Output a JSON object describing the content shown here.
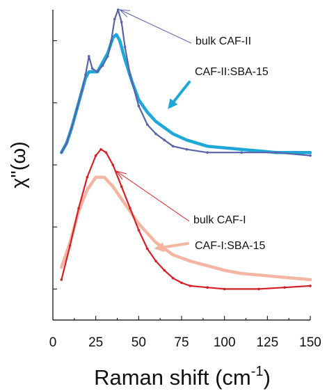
{
  "chart_data": {
    "type": "line",
    "xlabel": "Raman shift (cm",
    "xlabel_sup": "-1",
    "xlabel_close": ")",
    "ylabel": "χ\"(ω)",
    "xlim": [
      0,
      150
    ],
    "ylim": [
      0,
      10
    ],
    "x_ticks": [
      0,
      25,
      50,
      75,
      100,
      125,
      150
    ],
    "x_tick_labels": [
      "0",
      "25",
      "50",
      "75",
      "100",
      "125",
      "150"
    ],
    "y_ticks": [
      1,
      3,
      5,
      7,
      9
    ],
    "y_tick_labels_shown": false,
    "grid": false,
    "legend": "none",
    "series": [
      {
        "name": "bulk CAF-II",
        "color": "#5a62a8",
        "style": "dotted-line",
        "points": [
          [
            5,
            5.4
          ],
          [
            8,
            5.7
          ],
          [
            11,
            6.2
          ],
          [
            14,
            6.8
          ],
          [
            17,
            7.4
          ],
          [
            19,
            7.9
          ],
          [
            21,
            8.5
          ],
          [
            23,
            8.1
          ],
          [
            26,
            8.0
          ],
          [
            29,
            8.2
          ],
          [
            32,
            8.5
          ],
          [
            34,
            9.0
          ],
          [
            36,
            9.7
          ],
          [
            38,
            10.0
          ],
          [
            40,
            9.6
          ],
          [
            42,
            8.8
          ],
          [
            45,
            7.9
          ],
          [
            50,
            6.9
          ],
          [
            55,
            6.3
          ],
          [
            60,
            6.0
          ],
          [
            65,
            5.8
          ],
          [
            70,
            5.6
          ],
          [
            78,
            5.5
          ],
          [
            90,
            5.4
          ],
          [
            110,
            5.4
          ],
          [
            130,
            5.4
          ],
          [
            150,
            5.3
          ]
        ]
      },
      {
        "name": "CAF-II:SBA-15",
        "color": "#1ea8d8",
        "style": "thick-line",
        "points": [
          [
            5,
            5.4
          ],
          [
            8,
            5.7
          ],
          [
            11,
            6.2
          ],
          [
            14,
            6.8
          ],
          [
            17,
            7.4
          ],
          [
            19,
            7.8
          ],
          [
            21,
            8.0
          ],
          [
            23,
            8.0
          ],
          [
            26,
            8.0
          ],
          [
            29,
            8.3
          ],
          [
            32,
            8.6
          ],
          [
            35,
            9.1
          ],
          [
            37,
            9.2
          ],
          [
            39,
            9.0
          ],
          [
            42,
            8.4
          ],
          [
            46,
            7.7
          ],
          [
            50,
            7.1
          ],
          [
            55,
            6.7
          ],
          [
            60,
            6.4
          ],
          [
            65,
            6.2
          ],
          [
            70,
            6.0
          ],
          [
            78,
            5.8
          ],
          [
            90,
            5.6
          ],
          [
            110,
            5.5
          ],
          [
            130,
            5.4
          ],
          [
            150,
            5.4
          ]
        ]
      },
      {
        "name": "bulk CAF-I",
        "color": "#d42027",
        "style": "dotted-line",
        "points": [
          [
            5,
            1.3
          ],
          [
            10,
            2.4
          ],
          [
            15,
            3.6
          ],
          [
            20,
            4.6
          ],
          [
            25,
            5.3
          ],
          [
            28,
            5.5
          ],
          [
            31,
            5.4
          ],
          [
            35,
            5.0
          ],
          [
            40,
            4.3
          ],
          [
            45,
            3.6
          ],
          [
            50,
            2.9
          ],
          [
            55,
            2.3
          ],
          [
            60,
            1.9
          ],
          [
            65,
            1.6
          ],
          [
            70,
            1.35
          ],
          [
            75,
            1.2
          ],
          [
            80,
            1.1
          ],
          [
            90,
            1.05
          ],
          [
            100,
            1.0
          ],
          [
            120,
            1.0
          ],
          [
            135,
            1.05
          ],
          [
            150,
            1.1
          ]
        ]
      },
      {
        "name": "CAF-I:SBA-15",
        "color": "#f4b6a2",
        "style": "thick-line",
        "points": [
          [
            5,
            1.7
          ],
          [
            10,
            2.5
          ],
          [
            15,
            3.5
          ],
          [
            20,
            4.2
          ],
          [
            25,
            4.6
          ],
          [
            30,
            4.6
          ],
          [
            35,
            4.3
          ],
          [
            40,
            3.9
          ],
          [
            45,
            3.5
          ],
          [
            50,
            3.1
          ],
          [
            55,
            2.8
          ],
          [
            60,
            2.5
          ],
          [
            65,
            2.3
          ],
          [
            70,
            2.1
          ],
          [
            75,
            2.0
          ],
          [
            80,
            1.9
          ],
          [
            90,
            1.75
          ],
          [
            100,
            1.6
          ],
          [
            110,
            1.5
          ],
          [
            120,
            1.45
          ],
          [
            130,
            1.4
          ],
          [
            140,
            1.35
          ],
          [
            150,
            1.3
          ]
        ]
      }
    ],
    "annotations": [
      {
        "text": "bulk CAF-II",
        "color": "#5a62a8",
        "arrow": "thin",
        "point_x": 39,
        "point_y": 10.0
      },
      {
        "text": "CAF-II:SBA-15",
        "color": "#1ea8d8",
        "arrow": "thick",
        "point_x": 67,
        "point_y": 6.8
      },
      {
        "text": "bulk CAF-I",
        "color": "#d42027",
        "arrow": "thin",
        "point_x": 37,
        "point_y": 4.8
      },
      {
        "text": "CAF-I:SBA-15",
        "color": "#f4b6a2",
        "arrow": "thick",
        "point_x": 59,
        "point_y": 2.3
      }
    ]
  }
}
